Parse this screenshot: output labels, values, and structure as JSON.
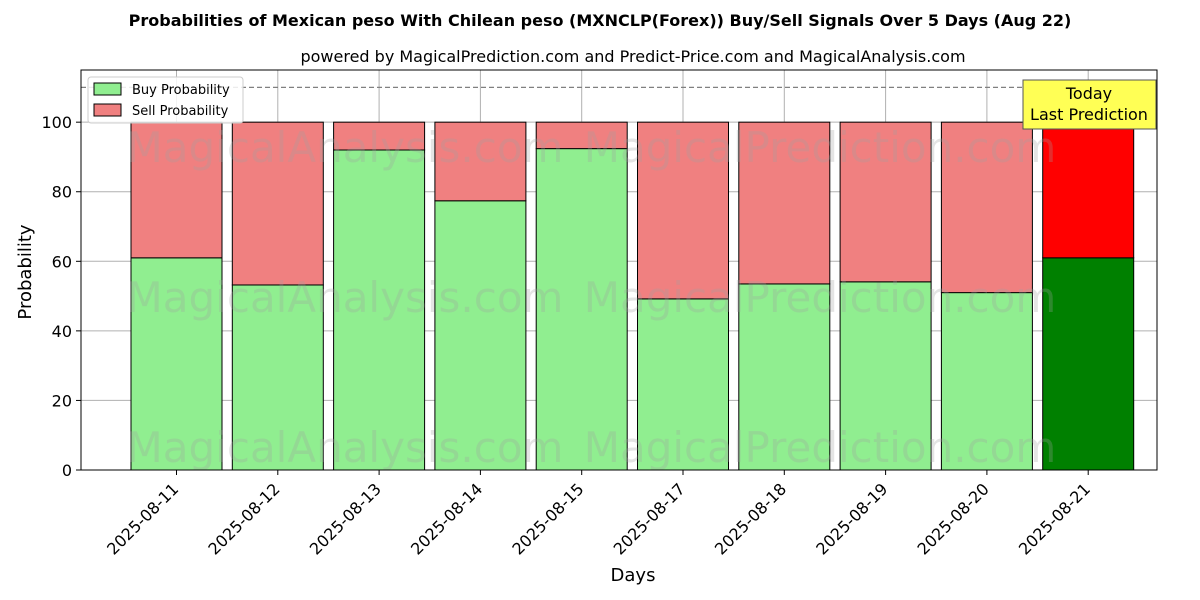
{
  "chart_data": {
    "type": "bar",
    "stacked": true,
    "title": "Probabilities of Mexican peso With Chilean peso (MXNCLP(Forex)) Buy/Sell Signals Over 5 Days (Aug 22)",
    "subtitle": "powered by MagicalPrediction.com and Predict-Price.com and MagicalAnalysis.com",
    "xlabel": "Days",
    "ylabel": "Probability",
    "ylim": [
      0,
      115
    ],
    "yticks": [
      0,
      20,
      40,
      60,
      80,
      100
    ],
    "grid": true,
    "legend_position": "top-left",
    "categories": [
      "2025-08-11",
      "2025-08-12",
      "2025-08-13",
      "2025-08-14",
      "2025-08-15",
      "2025-08-17",
      "2025-08-18",
      "2025-08-19",
      "2025-08-20",
      "2025-08-21"
    ],
    "series": [
      {
        "name": "Buy Probability",
        "color": "#90ee90",
        "highlight_color": "#008000",
        "values": [
          61,
          53.2,
          92,
          77.4,
          92.4,
          49.2,
          53.5,
          54.1,
          51,
          61
        ]
      },
      {
        "name": "Sell Probability",
        "color": "#f08080",
        "highlight_color": "#ff0000",
        "values": [
          39,
          46.8,
          8,
          22.6,
          7.6,
          50.8,
          46.5,
          45.9,
          49,
          39
        ]
      }
    ],
    "highlight_index": 9,
    "reference_line": {
      "y": 110,
      "style": "dashed",
      "color": "#808080"
    },
    "annotation": {
      "lines": [
        "Today",
        "Last Prediction"
      ],
      "background": "#ffff55"
    },
    "watermarks": [
      "MagicalAnalysis.com",
      "MagicalPrediction.com"
    ]
  }
}
